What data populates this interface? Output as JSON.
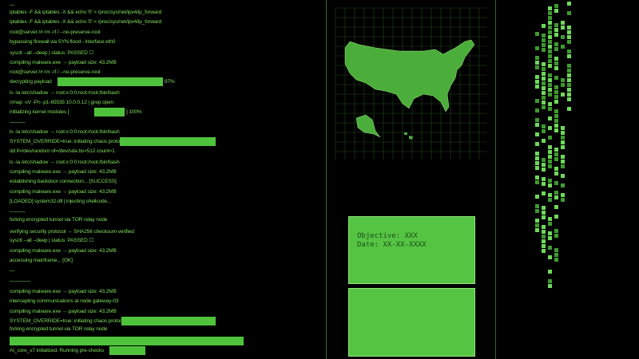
{
  "terminal": {
    "lines": [
      {
        "text": "—"
      },
      {
        "text": "iptables -F && iptables -X && echo '0' > /proc/sys/net/ipv4/ip_forward"
      },
      {
        "text": "iptables -F && iptables -X && echo '0' > /proc/sys/net/ipv4/ip_forward"
      },
      {
        "text": "root@server:/# rm -rf / --no-preserve-root"
      },
      {
        "text": "bypassing firewall via SYN flood - interface eth0"
      },
      {
        "text": "sysctl --all --deep | status: PASSED ☐"
      },
      {
        "text": "compiling malware.exe → payload size: 43.2MB"
      },
      {
        "text": "root@server:/# rm -rf / --no-preserve-root"
      },
      {
        "text": "decrypting payload",
        "suffix": "97%"
      },
      {
        "text": "ls -la /etc/shadow → root:x:0:0:root:/root:/bin/bash"
      },
      {
        "text": "nmap -sV -Pn -p1-65535 10.0.0.12 | grep open"
      },
      {
        "text": "initializing kernel modules [",
        "suffix": "] 100%"
      },
      {
        "text": "———"
      },
      {
        "text": "ls -la /etc/shadow → root:x:0:0:root:/root:/bin/bash"
      },
      {
        "text": "SYSTEM_OVERRIDE=true: initiating chaos protocol"
      },
      {
        "text": "dd if=/dev/random of=/dev/sda bs=512 count=1"
      },
      {
        "text": "ls -la /etc/shadow → root:x:0:0:root:/root:/bin/bash"
      },
      {
        "text": "compiling malware.exe → payload size: 43.2MB"
      },
      {
        "text": "establishing backdoor connection... [SUCCESS]"
      },
      {
        "text": "compiling malware.exe → payload size: 43.2MB"
      },
      {
        "text": "[LOADED] system32.dll | injecting shellcode..."
      },
      {
        "text": "———"
      },
      {
        "text": "forking encrypted tunnel via TOR relay node"
      },
      {
        "text": "verifying security protocol → SHA256 checksum verified"
      },
      {
        "text": "sysctl --all --deep | status: PASSED ☐"
      },
      {
        "text": "compiling malware.exe → payload size: 43.2MB"
      },
      {
        "text": "accessing mainframe... [OK]"
      },
      {
        "text": "—"
      },
      {
        "text": "————"
      },
      {
        "text": "compiling malware.exe → payload size: 43.2MB"
      },
      {
        "text": "intercepting communications at node gateway-03"
      },
      {
        "text": "compiling malware.exe → payload size: 43.2MB"
      },
      {
        "text": "SYSTEM_OVERRIDE=true: initiating chaos protocol"
      },
      {
        "text": "forking encrypted tunnel via TOR relay node"
      },
      {
        "text": "AI_core_v7 initialized. Running pre-checks"
      }
    ]
  },
  "objective_panel": {
    "objective": "Objective: XXX",
    "date": "Date: XX-XX-XXXX"
  }
}
